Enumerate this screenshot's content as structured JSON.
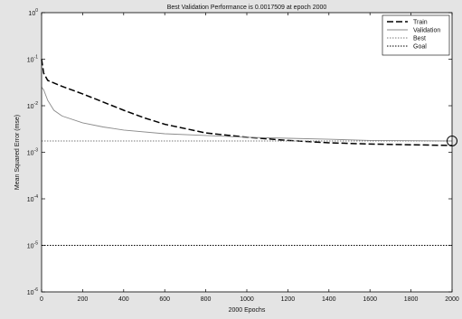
{
  "chart_data": {
    "type": "line",
    "title": "Best Validation Performance is 0.0017509 at epoch 2000",
    "xlabel": "2000 Epochs",
    "ylabel": "Mean Squared Error  (mse)",
    "xlim": [
      0,
      2000
    ],
    "ylim": [
      1e-06,
      1
    ],
    "yscale": "log",
    "x_ticks": [
      "0",
      "200",
      "400",
      "600",
      "800",
      "1000",
      "1200",
      "1400",
      "1600",
      "1800",
      "2000"
    ],
    "y_ticks": [
      "10^0",
      "10^-1",
      "10^-2",
      "10^-3",
      "10^-4",
      "10^-5",
      "10^-6"
    ],
    "grid": false,
    "legend_position": "top-right",
    "series": [
      {
        "name": "Train",
        "color": "#000000",
        "style": "dashed",
        "x": [
          0,
          10,
          30,
          100,
          200,
          300,
          400,
          500,
          600,
          800,
          1000,
          1200,
          1400,
          1600,
          1800,
          2000
        ],
        "y": [
          0.1,
          0.05,
          0.035,
          0.026,
          0.018,
          0.012,
          0.008,
          0.0055,
          0.004,
          0.0026,
          0.0021,
          0.0018,
          0.0016,
          0.0015,
          0.00145,
          0.0014
        ]
      },
      {
        "name": "Validation",
        "color": "#8a8a8a",
        "style": "solid",
        "x": [
          0,
          10,
          30,
          60,
          100,
          200,
          300,
          400,
          600,
          800,
          1000,
          1200,
          1400,
          1600,
          1800,
          2000
        ],
        "y": [
          0.025,
          0.022,
          0.013,
          0.008,
          0.006,
          0.0043,
          0.0035,
          0.003,
          0.0025,
          0.0023,
          0.0021,
          0.002,
          0.0019,
          0.0018,
          0.00177,
          0.0017509
        ]
      },
      {
        "name": "Best",
        "color": "#7a7a7a",
        "style": "dotted",
        "x": [
          0,
          2000
        ],
        "y": [
          0.0017509,
          0.0017509
        ]
      },
      {
        "name": "Goal",
        "color": "#000000",
        "style": "dotted",
        "x": [
          0,
          2000
        ],
        "y": [
          1e-05,
          1e-05
        ]
      }
    ],
    "best_marker": {
      "epoch": 2000,
      "value": 0.0017509
    }
  }
}
